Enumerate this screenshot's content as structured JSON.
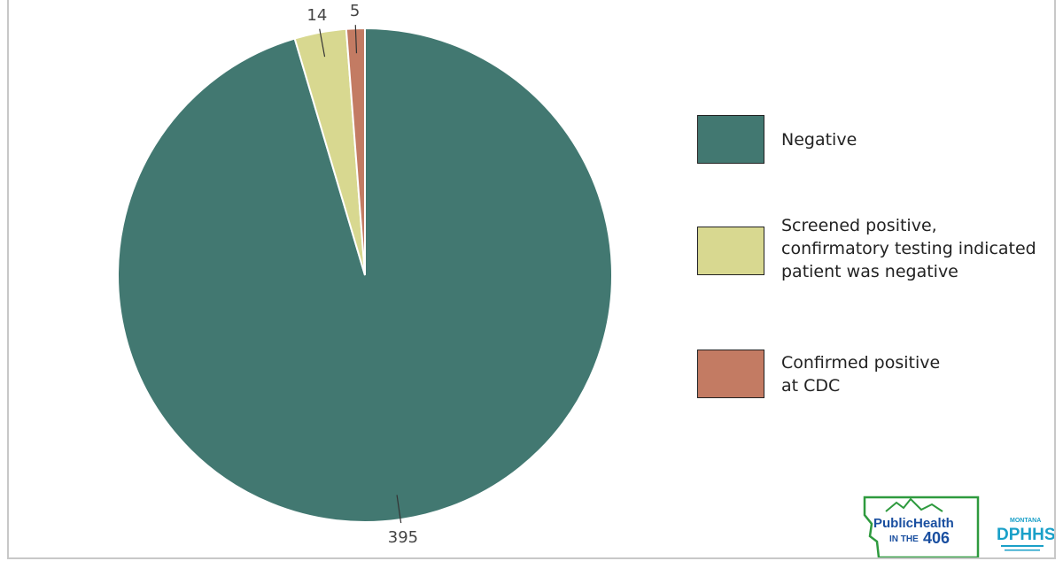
{
  "chart_data": {
    "type": "pie",
    "title": "",
    "slices": [
      {
        "label": "Negative",
        "value": 395,
        "color": "#427871"
      },
      {
        "label": "Screened positive,\nconfirmatory testing indicated\npatient was negative",
        "value": 14,
        "color": "#d8d890"
      },
      {
        "label": "Confirmed positive\nat CDC",
        "value": 5,
        "color": "#c37b63"
      }
    ],
    "legend_position": "right",
    "value_labels": [
      "395",
      "14",
      "5"
    ]
  },
  "logos": {
    "publichealth": {
      "line1": "PublicHealth",
      "line2": "IN THE",
      "line3": "406",
      "primary_color": "#1a4fa0",
      "accent_color": "#2e9a3e"
    },
    "dphhs": {
      "top": "MONTANA",
      "main": "DPHHS",
      "color": "#1aa0c8"
    }
  }
}
